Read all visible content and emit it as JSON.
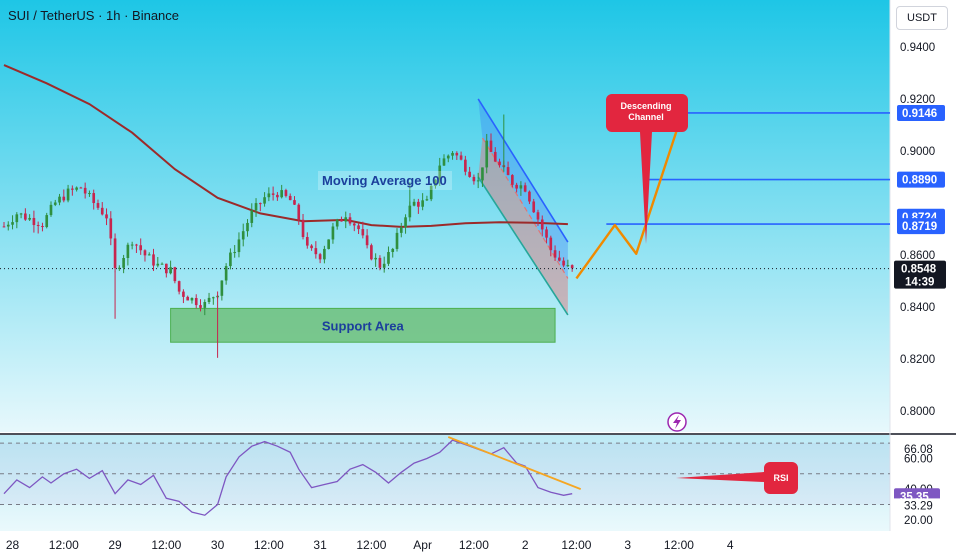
{
  "header": {
    "title": "SUI / TetherUS · 1h · Binance"
  },
  "currency_button": "USDT",
  "colors": {
    "bg_top": "#1ec6e6",
    "bg_bottom": "#e7f8fc",
    "up": "#2f8f3f",
    "down": "#c7254e",
    "ma": "#9c2a2a",
    "channel_fill_blue": "#3b82f6",
    "channel_fill_red": "#e57373",
    "support": "#6cc07a",
    "level_line": "#2962ff",
    "price_badge": "#2962ff",
    "callout": "#e2263f",
    "forecast": "#f08a00",
    "rsi_line": "#7e57c2",
    "rsi_trend": "#f5a623"
  },
  "chart_data": [
    {
      "type": "candlestick",
      "title": "SUI / TetherUS · 1h · Binance",
      "y_axis": {
        "ylim": [
          0.792,
          0.958
        ],
        "ticks": [
          "0.9400",
          "0.9200",
          "0.9000",
          "0.8600",
          "0.8400",
          "0.8200",
          "0.8000"
        ]
      },
      "x_axis": {
        "xlim": [
          0,
          206
        ],
        "ticks": [
          {
            "label": "28",
            "x": 2
          },
          {
            "label": "12:00",
            "x": 14
          },
          {
            "label": "29",
            "x": 26
          },
          {
            "label": "12:00",
            "x": 38
          },
          {
            "label": "30",
            "x": 50
          },
          {
            "label": "12:00",
            "x": 62
          },
          {
            "label": "31",
            "x": 74
          },
          {
            "label": "12:00",
            "x": 86
          },
          {
            "label": "Apr",
            "x": 98
          },
          {
            "label": "12:00",
            "x": 110
          },
          {
            "label": "2",
            "x": 122
          },
          {
            "label": "12:00",
            "x": 134
          },
          {
            "label": "3",
            "x": 146
          },
          {
            "label": "12:00",
            "x": 158
          },
          {
            "label": "4",
            "x": 170
          }
        ]
      },
      "ohlc_anchors": [
        [
          0,
          0.871
        ],
        [
          3,
          0.876
        ],
        [
          6,
          0.874
        ],
        [
          9,
          0.872
        ],
        [
          12,
          0.88
        ],
        [
          15,
          0.884
        ],
        [
          18,
          0.886
        ],
        [
          21,
          0.88
        ],
        [
          24,
          0.875
        ],
        [
          26,
          0.854
        ],
        [
          30,
          0.866
        ],
        [
          33,
          0.86
        ],
        [
          36,
          0.856
        ],
        [
          39,
          0.854
        ],
        [
          41,
          0.846
        ],
        [
          44,
          0.843
        ],
        [
          47,
          0.841
        ],
        [
          50,
          0.846
        ],
        [
          52,
          0.856
        ],
        [
          55,
          0.866
        ],
        [
          58,
          0.876
        ],
        [
          61,
          0.882
        ],
        [
          64,
          0.884
        ],
        [
          67,
          0.881
        ],
        [
          69,
          0.874
        ],
        [
          71,
          0.862
        ],
        [
          74,
          0.86
        ],
        [
          77,
          0.87
        ],
        [
          80,
          0.876
        ],
        [
          83,
          0.87
        ],
        [
          85,
          0.862
        ],
        [
          88,
          0.856
        ],
        [
          91,
          0.862
        ],
        [
          94,
          0.876
        ],
        [
          96,
          0.88
        ],
        [
          99,
          0.88
        ],
        [
          102,
          0.895
        ],
        [
          105,
          0.9
        ],
        [
          108,
          0.894
        ],
        [
          111,
          0.888
        ],
        [
          113,
          0.902
        ],
        [
          116,
          0.894
        ],
        [
          119,
          0.888
        ],
        [
          122,
          0.886
        ],
        [
          125,
          0.874
        ],
        [
          128,
          0.862
        ],
        [
          131,
          0.856
        ],
        [
          133,
          0.854
        ]
      ],
      "moving_average_100": [
        [
          0,
          0.933
        ],
        [
          10,
          0.926
        ],
        [
          20,
          0.918
        ],
        [
          30,
          0.907
        ],
        [
          40,
          0.893
        ],
        [
          50,
          0.882
        ],
        [
          60,
          0.876
        ],
        [
          70,
          0.873
        ],
        [
          80,
          0.8735
        ],
        [
          86,
          0.8715
        ],
        [
          93,
          0.8708
        ],
        [
          100,
          0.8712
        ],
        [
          108,
          0.8722
        ],
        [
          116,
          0.8726
        ],
        [
          124,
          0.8724
        ],
        [
          132,
          0.8719
        ]
      ],
      "annotations": {
        "moving_average_label": "Moving Average 100",
        "support_label": "Support Area",
        "support_zone": {
          "x": [
            39,
            129
          ],
          "y": [
            0.8265,
            0.8395
          ]
        },
        "descending_channel_label": "Descending Channel",
        "descending_channel": {
          "upper": [
            [
              111,
              0.92
            ],
            [
              132,
              0.865
            ]
          ],
          "lower": [
            [
              111,
              0.89
            ],
            [
              132,
              0.837
            ]
          ],
          "mid_dashed": [
            [
              112,
              0.905
            ],
            [
              132,
              0.851
            ]
          ]
        },
        "level_lines": [
          {
            "value": 0.9146,
            "x_start": 157
          },
          {
            "value": 0.889,
            "x_start": 150
          },
          {
            "value": 0.8719,
            "x_start": 141
          }
        ],
        "forecast_path": [
          [
            134,
            0.851
          ],
          [
            143,
            0.8715
          ],
          [
            148,
            0.8605
          ],
          [
            159,
            0.9155
          ]
        ]
      },
      "price_labels": [
        {
          "value": 0.9146,
          "text": "0.9146"
        },
        {
          "value": 0.889,
          "text": "0.8890"
        },
        {
          "value": 0.8724,
          "text": "0.8724"
        },
        {
          "value": 0.8719,
          "text": "0.8719"
        }
      ],
      "current_price": {
        "value": 0.8548,
        "text": "0.8548",
        "countdown": "14:39"
      }
    },
    {
      "type": "line",
      "title": "RSI",
      "ylim": [
        14,
        74
      ],
      "band_levels": [
        70,
        50,
        30
      ],
      "ticks": [
        "66.08",
        "60.00",
        "40.00",
        "20.00"
      ],
      "current_label": "35.35",
      "min_label": "33.29",
      "x": [
        0,
        3,
        6,
        9,
        11,
        14,
        17,
        20,
        23,
        26,
        29,
        32,
        35,
        38,
        41,
        44,
        47,
        50,
        52,
        55,
        58,
        61,
        64,
        67,
        69,
        72,
        75,
        78,
        81,
        84,
        87,
        90,
        93,
        96,
        99,
        102,
        105,
        108,
        111,
        114,
        117,
        120,
        122,
        125,
        128,
        131,
        133
      ],
      "y": [
        37,
        46,
        41,
        48,
        44,
        50,
        53,
        47,
        52,
        37,
        46,
        43,
        49,
        34,
        32,
        25,
        23,
        30,
        48,
        61,
        68,
        71,
        68,
        64,
        53,
        41,
        43,
        45,
        53,
        56,
        51,
        44,
        51,
        57,
        60,
        64,
        72,
        69,
        66,
        63,
        67,
        57,
        55,
        41,
        38,
        36,
        37
      ],
      "annotations": {
        "rsi_label": "RSI",
        "trendline": [
          [
            104,
            74
          ],
          [
            135,
            40
          ]
        ]
      }
    }
  ]
}
